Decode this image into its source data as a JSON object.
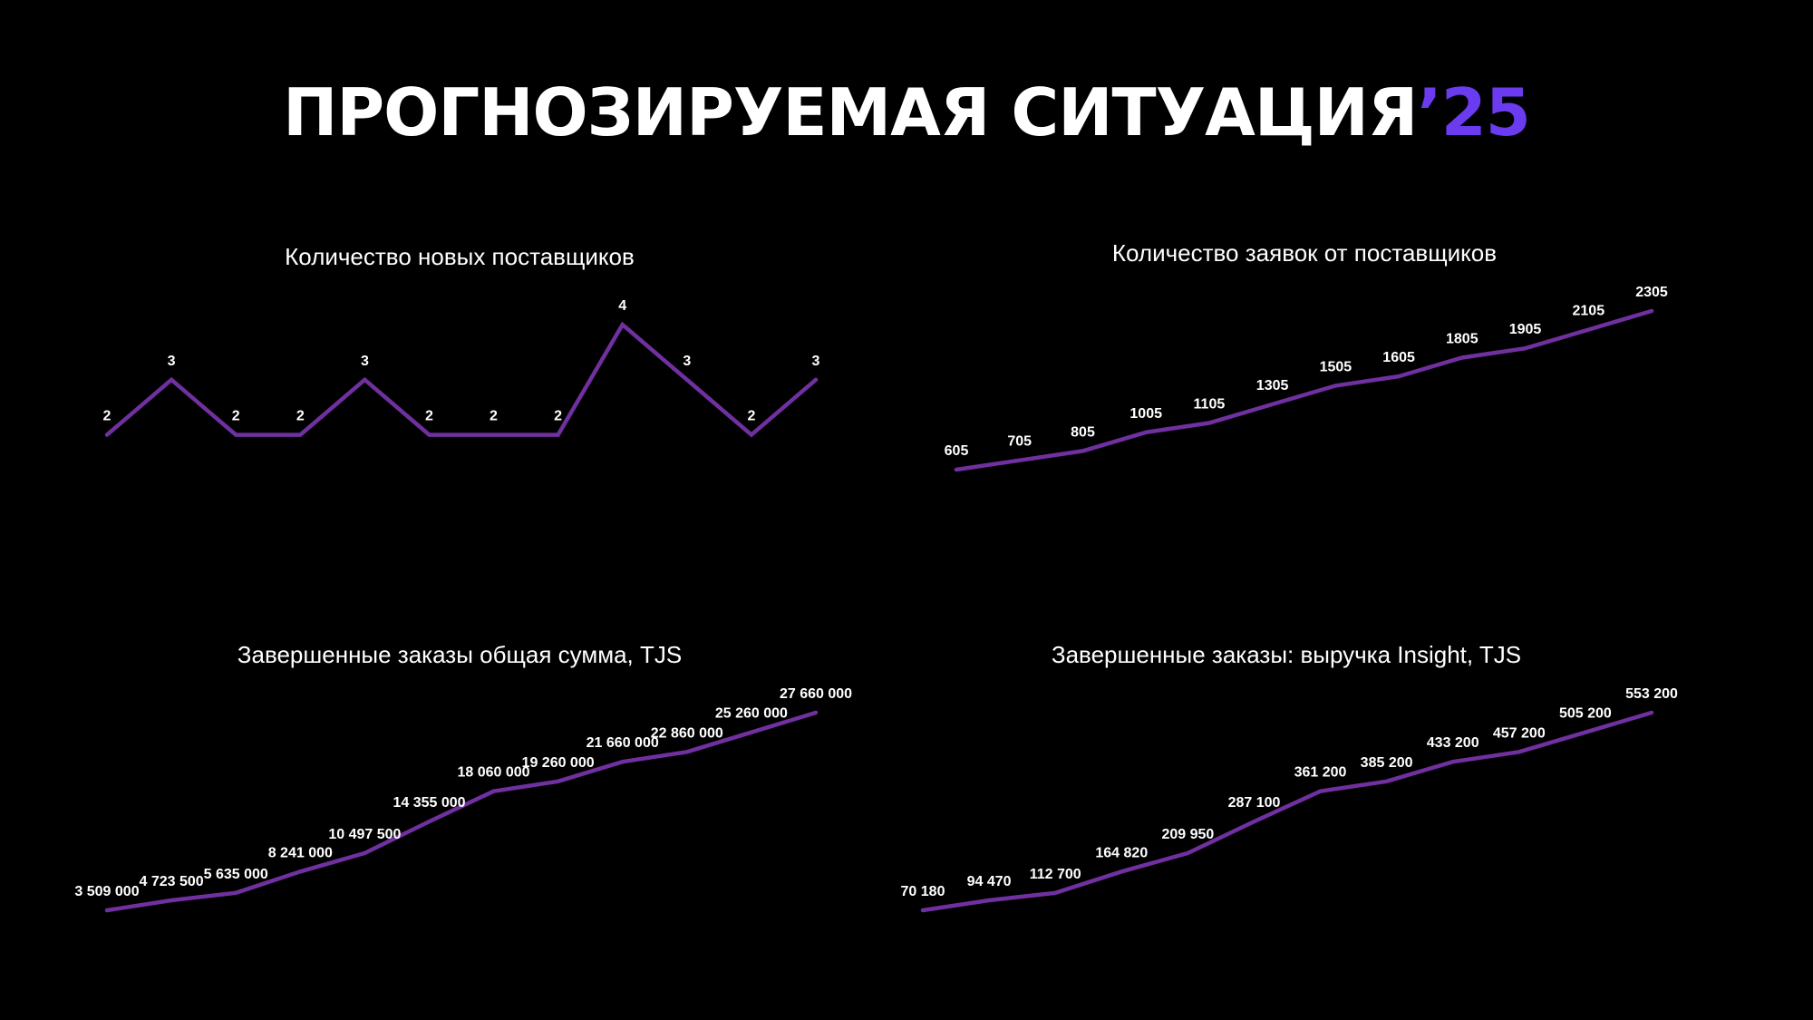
{
  "page": {
    "title_main": "ПРОГНОЗИРУЕМАЯ СИТУАЦИЯ",
    "title_year": "’25",
    "accent_color": "#6b3bf0",
    "line_color": "#7030a0",
    "background_color": "#000000"
  },
  "chart_data": [
    {
      "type": "line",
      "title": "Количество новых поставщиков",
      "values": [
        2,
        3,
        2,
        2,
        3,
        2,
        2,
        2,
        4,
        3,
        2,
        3
      ],
      "labels": [
        "2",
        "3",
        "2",
        "2",
        "3",
        "2",
        "2",
        "2",
        "4",
        "3",
        "2",
        "3"
      ],
      "xlabel": "",
      "ylabel": "",
      "grid": false
    },
    {
      "type": "line",
      "title": "Количество заявок от поставщиков",
      "values": [
        605,
        705,
        805,
        1005,
        1105,
        1305,
        1505,
        1605,
        1805,
        1905,
        2105,
        2305
      ],
      "labels": [
        "605",
        "705",
        "805",
        "1005",
        "1105",
        "1305",
        "1505",
        "1605",
        "1805",
        "1905",
        "2105",
        "2305"
      ],
      "xlabel": "",
      "ylabel": "",
      "grid": false
    },
    {
      "type": "line",
      "title": "Завершенные заказы общая сумма, TJS",
      "values": [
        3509000,
        4723500,
        5635000,
        8241000,
        10497500,
        14355000,
        18060000,
        19260000,
        21660000,
        22860000,
        25260000,
        27660000
      ],
      "labels": [
        "3 509 000",
        "4 723 500",
        "5 635 000",
        "8 241 000",
        "10 497 500",
        "14 355 000",
        "18 060 000",
        "19 260 000",
        "21 660 000",
        "22 860 000",
        "25 260 000",
        "27 660 000"
      ],
      "xlabel": "",
      "ylabel": "",
      "grid": false
    },
    {
      "type": "line",
      "title": "Завершенные заказы: выручка Insight, TJS",
      "values": [
        70180,
        94470,
        112700,
        164820,
        209950,
        287100,
        361200,
        385200,
        433200,
        457200,
        505200,
        553200
      ],
      "labels": [
        "70 180",
        "94 470",
        "112 700",
        "164 820",
        "209 950",
        "287 100",
        "361 200",
        "385 200",
        "433 200",
        "457 200",
        "505 200",
        "553 200"
      ],
      "xlabel": "",
      "ylabel": "",
      "grid": false
    }
  ]
}
